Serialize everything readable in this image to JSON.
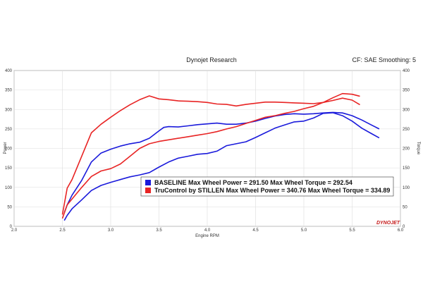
{
  "header": {
    "title": "Dynojet Research",
    "settings": "CF: SAE Smoothing: 5"
  },
  "legend": [
    {
      "label": "BASELINE Max Wheel Power = 291.50 Max Wheel Torque = 292.54",
      "color": "#1a1adb"
    },
    {
      "label": "TruControl by STILLEN Max Wheel Power = 340.76 Max Wheel Torque = 334.89",
      "color": "#e82424"
    }
  ],
  "logo": {
    "text": "DYNOJET"
  },
  "chart_data": {
    "type": "line",
    "xlabel": "Engine RPM",
    "ylabel_left": "Power",
    "ylabel_right": "Torque",
    "xlim": [
      2.0,
      6.0
    ],
    "ylim": [
      0,
      400
    ],
    "x_ticks": [
      "2.0",
      "2.5",
      "3.0",
      "3.5",
      "4.0",
      "4.5",
      "5.0",
      "5.5",
      "6.0"
    ],
    "y_ticks": [
      "0",
      "50",
      "100",
      "150",
      "200",
      "250",
      "300",
      "350",
      "400"
    ],
    "grid": true,
    "series": [
      {
        "name": "BASELINE Power",
        "color": "#1a1adb",
        "points": [
          [
            2.52,
            15
          ],
          [
            2.55,
            28
          ],
          [
            2.6,
            45
          ],
          [
            2.7,
            68
          ],
          [
            2.8,
            92
          ],
          [
            2.9,
            105
          ],
          [
            3.0,
            113
          ],
          [
            3.1,
            120
          ],
          [
            3.2,
            127
          ],
          [
            3.3,
            132
          ],
          [
            3.4,
            138
          ],
          [
            3.5,
            152
          ],
          [
            3.6,
            165
          ],
          [
            3.7,
            175
          ],
          [
            3.8,
            180
          ],
          [
            3.9,
            185
          ],
          [
            4.0,
            187
          ],
          [
            4.1,
            193
          ],
          [
            4.2,
            207
          ],
          [
            4.3,
            212
          ],
          [
            4.4,
            217
          ],
          [
            4.5,
            228
          ],
          [
            4.6,
            240
          ],
          [
            4.7,
            252
          ],
          [
            4.8,
            260
          ],
          [
            4.9,
            268
          ],
          [
            5.0,
            270
          ],
          [
            5.1,
            278
          ],
          [
            5.2,
            290
          ],
          [
            5.3,
            291.5
          ],
          [
            5.4,
            284
          ],
          [
            5.5,
            270
          ],
          [
            5.6,
            252
          ],
          [
            5.7,
            238
          ],
          [
            5.78,
            227
          ]
        ]
      },
      {
        "name": "BASELINE Torque",
        "color": "#1a1adb",
        "points": [
          [
            2.52,
            35
          ],
          [
            2.55,
            55
          ],
          [
            2.6,
            80
          ],
          [
            2.7,
            118
          ],
          [
            2.8,
            165
          ],
          [
            2.9,
            188
          ],
          [
            3.0,
            198
          ],
          [
            3.1,
            206
          ],
          [
            3.2,
            212
          ],
          [
            3.3,
            216
          ],
          [
            3.4,
            226
          ],
          [
            3.5,
            245
          ],
          [
            3.55,
            254
          ],
          [
            3.6,
            256
          ],
          [
            3.7,
            255
          ],
          [
            3.8,
            258
          ],
          [
            3.9,
            261
          ],
          [
            4.0,
            263
          ],
          [
            4.1,
            265
          ],
          [
            4.2,
            262
          ],
          [
            4.3,
            262
          ],
          [
            4.4,
            265
          ],
          [
            4.5,
            270
          ],
          [
            4.6,
            277
          ],
          [
            4.7,
            283
          ],
          [
            4.8,
            287
          ],
          [
            4.9,
            289
          ],
          [
            5.0,
            288
          ],
          [
            5.1,
            289
          ],
          [
            5.2,
            291
          ],
          [
            5.3,
            292.54
          ],
          [
            5.4,
            291
          ],
          [
            5.5,
            284
          ],
          [
            5.6,
            273
          ],
          [
            5.7,
            260
          ],
          [
            5.78,
            250
          ]
        ]
      },
      {
        "name": "TruControl by STILLEN Power",
        "color": "#e82424",
        "points": [
          [
            2.5,
            20
          ],
          [
            2.55,
            55
          ],
          [
            2.6,
            70
          ],
          [
            2.7,
            100
          ],
          [
            2.8,
            128
          ],
          [
            2.9,
            142
          ],
          [
            3.0,
            148
          ],
          [
            3.1,
            160
          ],
          [
            3.2,
            180
          ],
          [
            3.3,
            200
          ],
          [
            3.4,
            212
          ],
          [
            3.5,
            218
          ],
          [
            3.6,
            222
          ],
          [
            3.7,
            226
          ],
          [
            3.8,
            230
          ],
          [
            3.9,
            234
          ],
          [
            4.0,
            238
          ],
          [
            4.1,
            243
          ],
          [
            4.2,
            250
          ],
          [
            4.3,
            256
          ],
          [
            4.4,
            264
          ],
          [
            4.5,
            272
          ],
          [
            4.6,
            280
          ],
          [
            4.7,
            284
          ],
          [
            4.8,
            290
          ],
          [
            4.9,
            295
          ],
          [
            5.0,
            302
          ],
          [
            5.1,
            308
          ],
          [
            5.2,
            318
          ],
          [
            5.3,
            330
          ],
          [
            5.4,
            340.76
          ],
          [
            5.5,
            339
          ],
          [
            5.58,
            334
          ]
        ]
      },
      {
        "name": "TruControl by STILLEN Torque",
        "color": "#e82424",
        "points": [
          [
            2.5,
            30
          ],
          [
            2.55,
            98
          ],
          [
            2.6,
            120
          ],
          [
            2.7,
            180
          ],
          [
            2.8,
            240
          ],
          [
            2.9,
            262
          ],
          [
            3.0,
            280
          ],
          [
            3.1,
            297
          ],
          [
            3.2,
            312
          ],
          [
            3.3,
            325
          ],
          [
            3.4,
            334.89
          ],
          [
            3.5,
            327
          ],
          [
            3.6,
            325
          ],
          [
            3.7,
            322
          ],
          [
            3.8,
            321
          ],
          [
            3.9,
            320
          ],
          [
            4.0,
            318
          ],
          [
            4.1,
            314
          ],
          [
            4.2,
            313
          ],
          [
            4.3,
            309
          ],
          [
            4.4,
            313
          ],
          [
            4.5,
            316
          ],
          [
            4.6,
            319
          ],
          [
            4.7,
            319
          ],
          [
            4.8,
            318
          ],
          [
            4.9,
            317
          ],
          [
            5.0,
            316
          ],
          [
            5.1,
            315
          ],
          [
            5.2,
            318
          ],
          [
            5.3,
            323
          ],
          [
            5.4,
            329
          ],
          [
            5.5,
            324
          ],
          [
            5.58,
            312
          ]
        ]
      }
    ]
  }
}
